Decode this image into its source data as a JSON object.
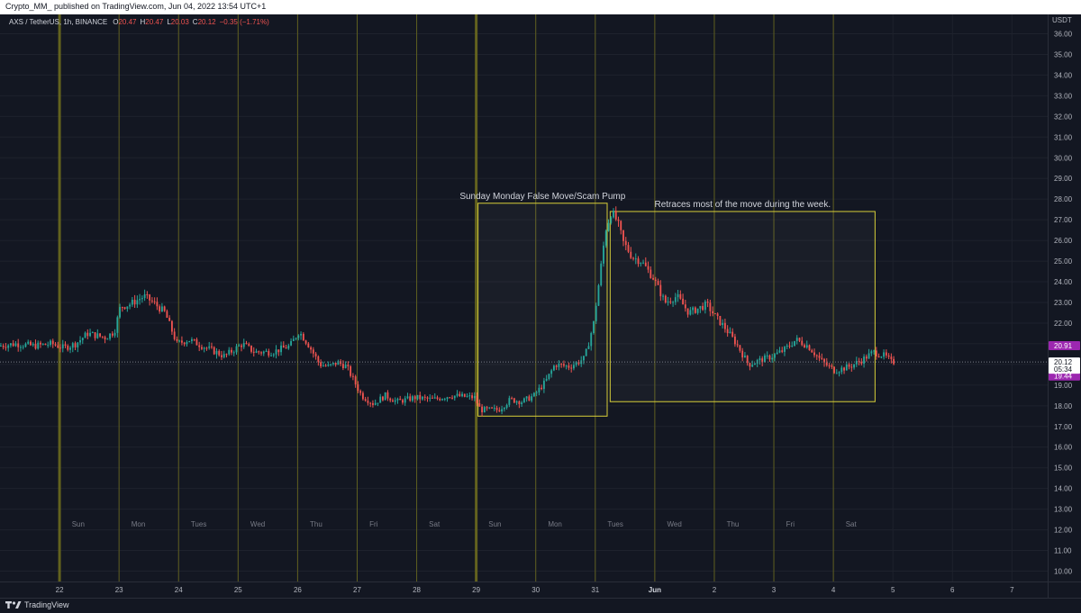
{
  "header": {
    "published_by": "Crypto_MM_ published on TradingView.com, Jun 04, 2022 13:54 UTC+1"
  },
  "legend": {
    "symbol_line": "AXS / TetherUS, 1h, BINANCE",
    "ohlc": [
      {
        "k": "O",
        "v": "20.47"
      },
      {
        "k": "H",
        "v": "20.47"
      },
      {
        "k": "L",
        "v": "20.03"
      },
      {
        "k": "C",
        "v": "20.12"
      }
    ],
    "change": "−0.35 (−1.71%)",
    "up_color": "#26a69a",
    "down_color": "#ef5350"
  },
  "footer": {
    "brand": "TradingView",
    "logo_icon": "tradingview-logo-icon"
  },
  "price_tags": {
    "high": {
      "value": "20.91",
      "y": 20.91,
      "color": "#9c27b0"
    },
    "current": {
      "value": "20.12",
      "countdown": "05:34",
      "y": 20.12
    },
    "low": {
      "value": "19.44",
      "y": 19.44,
      "color": "#9c27b0"
    }
  },
  "chart_data": {
    "type": "candlestick",
    "title": "AXS / TetherUS, 1h, BINANCE",
    "axis_currency": "USDT",
    "ylim": [
      9.5,
      36.5
    ],
    "y_ticks": [
      "10.00",
      "11.00",
      "12.00",
      "13.00",
      "14.00",
      "15.00",
      "16.00",
      "17.00",
      "18.00",
      "19.00",
      "20.00",
      "21.00",
      "22.00",
      "23.00",
      "24.00",
      "25.00",
      "26.00",
      "27.00",
      "28.00",
      "29.00",
      "30.00",
      "31.00",
      "32.00",
      "33.00",
      "34.00",
      "35.00",
      "36.00"
    ],
    "x_range_days": [
      21.0,
      38.6
    ],
    "x_ticks": [
      {
        "d": 22,
        "label": "22"
      },
      {
        "d": 23,
        "label": "23"
      },
      {
        "d": 24,
        "label": "24"
      },
      {
        "d": 25,
        "label": "25"
      },
      {
        "d": 26,
        "label": "26"
      },
      {
        "d": 27,
        "label": "27"
      },
      {
        "d": 28,
        "label": "28"
      },
      {
        "d": 29,
        "label": "29"
      },
      {
        "d": 30,
        "label": "30"
      },
      {
        "d": 31,
        "label": "31"
      },
      {
        "d": 32,
        "label": "Jun",
        "bold": true
      },
      {
        "d": 33,
        "label": "2"
      },
      {
        "d": 34,
        "label": "3"
      },
      {
        "d": 35,
        "label": "4"
      },
      {
        "d": 36,
        "label": "5"
      },
      {
        "d": 37,
        "label": "6"
      },
      {
        "d": 38,
        "label": "7"
      }
    ],
    "weekday_labels": [
      {
        "d": 22.1,
        "label": "Sun"
      },
      {
        "d": 23.1,
        "label": "Mon"
      },
      {
        "d": 24.1,
        "label": "Tues"
      },
      {
        "d": 25.1,
        "label": "Wed"
      },
      {
        "d": 26.1,
        "label": "Thu"
      },
      {
        "d": 27.1,
        "label": "Fri"
      },
      {
        "d": 28.1,
        "label": "Sat"
      },
      {
        "d": 29.1,
        "label": "Sun"
      },
      {
        "d": 30.1,
        "label": "Mon"
      },
      {
        "d": 31.1,
        "label": "Tues"
      },
      {
        "d": 32.1,
        "label": "Wed"
      },
      {
        "d": 33.1,
        "label": "Thu"
      },
      {
        "d": 34.1,
        "label": "Fri"
      },
      {
        "d": 35.1,
        "label": "Sat"
      }
    ],
    "session_lines": [
      {
        "d": 22.0,
        "thick": true
      },
      {
        "d": 23.0
      },
      {
        "d": 24.0
      },
      {
        "d": 25.0
      },
      {
        "d": 26.0
      },
      {
        "d": 27.0
      },
      {
        "d": 28.0
      },
      {
        "d": 29.0,
        "thick": true
      },
      {
        "d": 30.0
      },
      {
        "d": 31.0
      },
      {
        "d": 32.0
      },
      {
        "d": 33.0
      },
      {
        "d": 34.0
      },
      {
        "d": 35.0
      }
    ],
    "path_points": [
      [
        21.0,
        20.9
      ],
      [
        21.3,
        21.0
      ],
      [
        21.6,
        20.9
      ],
      [
        21.9,
        21.0
      ],
      [
        22.1,
        20.8
      ],
      [
        22.3,
        21.0
      ],
      [
        22.5,
        21.5
      ],
      [
        22.8,
        21.3
      ],
      [
        22.95,
        21.6
      ],
      [
        23.05,
        22.8
      ],
      [
        23.2,
        22.9
      ],
      [
        23.45,
        23.3
      ],
      [
        23.6,
        23.0
      ],
      [
        23.8,
        22.5
      ],
      [
        24.0,
        21.0
      ],
      [
        24.2,
        21.2
      ],
      [
        24.5,
        20.8
      ],
      [
        24.8,
        20.4
      ],
      [
        25.1,
        21.0
      ],
      [
        25.3,
        20.6
      ],
      [
        25.6,
        20.6
      ],
      [
        25.9,
        20.9
      ],
      [
        26.05,
        21.6
      ],
      [
        26.2,
        21.0
      ],
      [
        26.4,
        20.0
      ],
      [
        26.55,
        19.9
      ],
      [
        26.7,
        20.1
      ],
      [
        26.85,
        19.9
      ],
      [
        27.1,
        18.5
      ],
      [
        27.3,
        18.1
      ],
      [
        27.5,
        18.5
      ],
      [
        27.7,
        18.2
      ],
      [
        28.0,
        18.4
      ],
      [
        28.3,
        18.3
      ],
      [
        28.6,
        18.5
      ],
      [
        29.0,
        18.4
      ],
      [
        29.1,
        17.8
      ],
      [
        29.4,
        17.8
      ],
      [
        29.6,
        18.3
      ],
      [
        29.8,
        18.2
      ],
      [
        30.0,
        18.5
      ],
      [
        30.2,
        19.2
      ],
      [
        30.35,
        20.0
      ],
      [
        30.6,
        19.9
      ],
      [
        30.85,
        20.3
      ],
      [
        31.0,
        22.0
      ],
      [
        31.1,
        24.2
      ],
      [
        31.2,
        26.5
      ],
      [
        31.3,
        27.4
      ],
      [
        31.4,
        26.9
      ],
      [
        31.5,
        25.9
      ],
      [
        31.65,
        25.2
      ],
      [
        31.8,
        25.0
      ],
      [
        32.0,
        24.2
      ],
      [
        32.2,
        23.0
      ],
      [
        32.4,
        23.3
      ],
      [
        32.6,
        22.5
      ],
      [
        32.9,
        22.9
      ],
      [
        33.05,
        22.3
      ],
      [
        33.2,
        21.8
      ],
      [
        33.4,
        21.0
      ],
      [
        33.6,
        20.0
      ],
      [
        33.8,
        20.2
      ],
      [
        34.0,
        20.4
      ],
      [
        34.2,
        20.7
      ],
      [
        34.4,
        21.2
      ],
      [
        34.6,
        20.9
      ],
      [
        34.85,
        20.1
      ],
      [
        35.05,
        19.7
      ],
      [
        35.3,
        19.9
      ],
      [
        35.5,
        20.2
      ],
      [
        35.7,
        20.6
      ],
      [
        35.9,
        20.4
      ],
      [
        36.0,
        20.12
      ]
    ],
    "annotations": [
      {
        "x0": 29.03,
        "x1": 31.2,
        "y0": 17.5,
        "y1": 27.8,
        "label": "Sunday Monday False Move/Scam Pump"
      },
      {
        "x0": 31.25,
        "x1": 35.7,
        "y0": 18.2,
        "y1": 27.4,
        "label": "Retraces most of the move during the week."
      }
    ]
  }
}
